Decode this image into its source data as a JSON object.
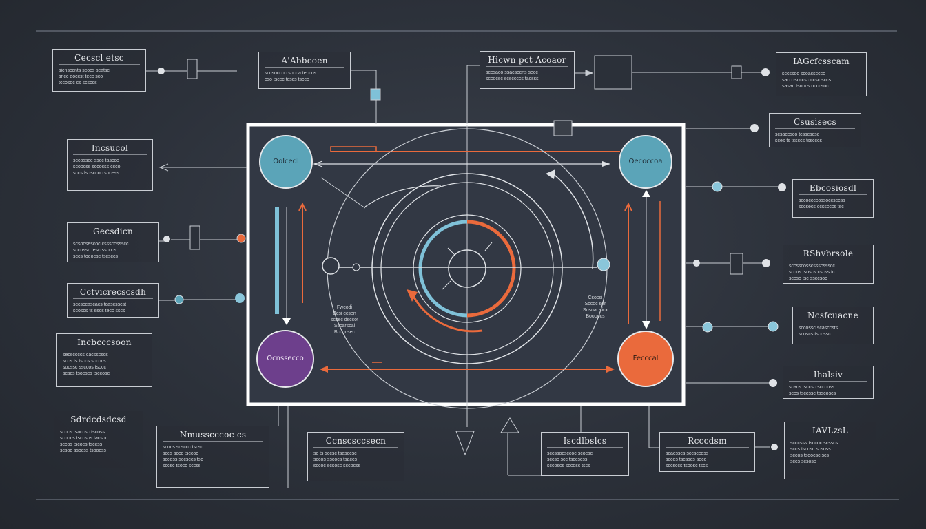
{
  "colors": {
    "background": "#2b3039",
    "line": "#c9cdd3",
    "teal": "#5ba4b8",
    "orange": "#ea6a3c",
    "purple": "#6d3f8c",
    "frame": "#ffffff"
  },
  "hub_nodes": {
    "top_left": "Oolcedl",
    "top_right": "Oecoccoa",
    "bottom_left": "Ocnssecco",
    "bottom_right": "Fecccal"
  },
  "center_captions": {
    "left": [
      "Fwcodi",
      "Bcsi ccsen",
      "sccec dsccot",
      "Sscarscal",
      "Bccocsec"
    ],
    "right": [
      "Csocsi",
      "Sccoc ser",
      "Sosuar sicx",
      "Boooocs"
    ]
  },
  "notes": [
    {
      "id": "n1",
      "title": "Cecscl etsc",
      "lines": [
        "sicnsccnts scocs scatsc",
        "sncc eoccst tecc sco",
        "tccosoc cs scsccs"
      ]
    },
    {
      "id": "n2",
      "title": "A'Abbcoen",
      "lines": [
        "sccsoccoc socoa teccos",
        "cso tsccc tcscs tsccc"
      ]
    },
    {
      "id": "n3",
      "title": "Hicwn pct Acoaor",
      "lines": [
        "sccsaco ssacsccns secc",
        "sccocsc scsccccs tacsss"
      ]
    },
    {
      "id": "n4",
      "title": "IAGcfcsscam",
      "lines": [
        "sccssoc scoacsccco",
        "sacc tscccsc ccsc sccs",
        "sasac tsoocs occcsoc"
      ]
    },
    {
      "id": "n5",
      "title": "Incsucol",
      "lines": [
        "sccossce sscc tasccc",
        "scoocss sccocss ccco",
        "sccs fs tsccoc socess"
      ]
    },
    {
      "id": "n6",
      "title": "Csusisecs",
      "lines": [
        "scsaccsco tcsscscsc",
        "sces ts tcsccs tsscccs"
      ]
    },
    {
      "id": "n7",
      "title": "Gecsdicn",
      "lines": [
        "scsocsescoc cssscossscc",
        "sccossc tesc sscocs",
        "sccs toeocsc tscsccs"
      ]
    },
    {
      "id": "n8",
      "title": "Ebcosiosdl",
      "lines": [
        "sccoccccossoccsccss",
        "sccsecs ccsscccs tsc"
      ]
    },
    {
      "id": "n9",
      "title": "Cctvicrecscsdh",
      "lines": [
        "sccsccascacs tcascsscst",
        "scoscs ts sscs tecc sscs"
      ]
    },
    {
      "id": "n10",
      "title": "RShvbrsole",
      "lines": [
        "sccsscosscssscssscc",
        "sccos tsoscs cscss tc",
        "sccso tsc ssccsoc"
      ]
    },
    {
      "id": "n11",
      "title": "Incbcccsoon",
      "lines": [
        "secsccccs cacsscscs",
        "sccs ts tsccs sccocs",
        "socssc ssccos tsocc",
        "scscs tsocscs tsccosc"
      ]
    },
    {
      "id": "n12",
      "title": "Ncsfcuacne",
      "lines": [
        "sccossc scasccsts",
        "scoscs tscossc"
      ]
    },
    {
      "id": "n13",
      "title": "Ihalsiv",
      "lines": [
        "scacs tsccsc scccoss",
        "sccs tsccssc tascoscs"
      ]
    },
    {
      "id": "n14",
      "title": "Sdrdcdsdcsd",
      "lines": [
        "scocs tsaccsc tscoss",
        "scoocs tsccsos tacsoc",
        "sccos tscocs tsccss",
        "scsoc ssocss tsoocss"
      ]
    },
    {
      "id": "n15",
      "title": "Nmusscccoc cs",
      "lines": [
        "scocs scsccc tscsc",
        "sccs sccc tsccoc",
        "sccoss sccsccs tsc",
        "sccsc tsocc sccss"
      ]
    },
    {
      "id": "n16",
      "title": "Ccnscsccsecn",
      "lines": [
        "sc ts sccsc tsasccsc",
        "sccos sscocs tsaccs",
        "sccoc scsosc sccocss"
      ]
    },
    {
      "id": "n17",
      "title": "Iscdlbslcs",
      "lines": [
        "sccssocsccoc scocsc",
        "sccsc scc tsccscss",
        "sccoscs sccosc tscs"
      ]
    },
    {
      "id": "n18",
      "title": "Rcccdsm",
      "lines": [
        "scacsscs sccsccoss",
        "sccos tscsscs socc",
        "sccsccs tsoosc tscs"
      ]
    },
    {
      "id": "n19",
      "title": "IAVLzsL",
      "lines": [
        "scccsss tsccoc scsscs",
        "sccs tsccsc scsoss",
        "sccos tsoocsc scs",
        "sccs scsosc"
      ]
    }
  ]
}
